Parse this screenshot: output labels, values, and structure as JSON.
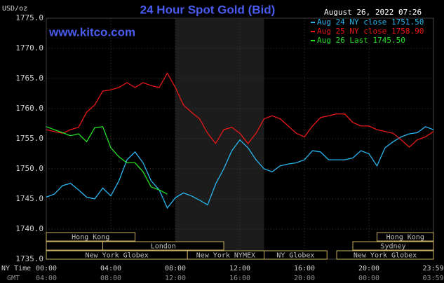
{
  "chart_data": {
    "type": "line",
    "title": "24 Hour Spot Gold (Bid)",
    "y_label": "USD/oz",
    "watermark": "www.kitco.com",
    "timestamp": "August 26, 2022 07:26",
    "x_row_label": "NY Time",
    "x2_row_label": "GMT",
    "x": [
      0,
      0.5,
      1,
      1.5,
      2,
      2.5,
      3,
      3.5,
      4,
      4.5,
      5,
      5.5,
      6,
      6.5,
      7,
      7.5,
      8,
      8.5,
      9,
      9.5,
      10,
      10.5,
      11,
      11.5,
      12,
      12.5,
      13,
      13.5,
      14,
      14.5,
      15,
      15.5,
      16,
      16.5,
      17,
      17.5,
      18,
      18.5,
      19,
      19.5,
      20,
      20.5,
      21,
      21.5,
      22,
      22.5,
      23,
      23.5,
      24
    ],
    "series": [
      {
        "name": "Aug 24 NY close 1751.50",
        "color": "#29b6f0",
        "values": [
          1745.3,
          1745.8,
          1747.2,
          1747.6,
          1746.5,
          1745.3,
          1745.0,
          1746.8,
          1745.5,
          1748.0,
          1751.5,
          1752.8,
          1751.0,
          1748.0,
          1746.5,
          1743.5,
          1745.2,
          1746.0,
          1745.5,
          1744.8,
          1744.0,
          1747.5,
          1750.0,
          1753.0,
          1754.8,
          1753.5,
          1751.5,
          1750.0,
          1749.5,
          1750.5,
          1750.8,
          1751.0,
          1751.5,
          1753.0,
          1752.8,
          1751.5,
          1751.5,
          1751.5,
          1751.8,
          1753.0,
          1752.5,
          1750.5,
          1753.5,
          1754.5,
          1755.3,
          1755.8,
          1756.0,
          1757.0,
          1756.5
        ]
      },
      {
        "name": "Aug 25 NY close 1758.90",
        "color": "#e81818",
        "values": [
          1756.5,
          1756.2,
          1755.9,
          1756.5,
          1756.9,
          1759.4,
          1760.6,
          1762.9,
          1763.1,
          1763.5,
          1764.3,
          1763.5,
          1764.3,
          1763.8,
          1763.5,
          1765.9,
          1763.5,
          1760.6,
          1759.4,
          1758.3,
          1755.9,
          1754.2,
          1756.5,
          1756.9,
          1755.9,
          1754.2,
          1755.9,
          1758.3,
          1758.8,
          1758.3,
          1757.1,
          1755.9,
          1755.3,
          1757.1,
          1758.5,
          1758.8,
          1759.1,
          1759.1,
          1757.7,
          1757.1,
          1757.1,
          1756.5,
          1756.2,
          1755.9,
          1754.8,
          1753.6,
          1754.8,
          1755.3,
          1756.2
        ]
      },
      {
        "name": "Aug 26 Last 1745.50",
        "color": "#22e022",
        "values": [
          1757.0,
          1756.5,
          1756.0,
          1755.5,
          1755.8,
          1754.5,
          1756.8,
          1757.0,
          1753.5,
          1752.0,
          1751.0,
          1751.0,
          1749.5,
          1747.0,
          1746.5,
          1745.8,
          null,
          null,
          null,
          null,
          null,
          null,
          null,
          null,
          null,
          null,
          null,
          null,
          null,
          null,
          null,
          null,
          null,
          null,
          null,
          null,
          null,
          null,
          null,
          null,
          null,
          null,
          null,
          null,
          null,
          null,
          null,
          null,
          null
        ]
      }
    ],
    "xlim": [
      0,
      24
    ],
    "ylim": [
      1735,
      1775
    ],
    "xticks": [
      {
        "value": 0,
        "label": "00:00"
      },
      {
        "value": 4,
        "label": "04:00"
      },
      {
        "value": 8,
        "label": "08:00"
      },
      {
        "value": 12,
        "label": "12:00"
      },
      {
        "value": 16,
        "label": "16:00"
      },
      {
        "value": 20,
        "label": "20:00"
      },
      {
        "value": 23.98,
        "label": "23:59"
      }
    ],
    "x2tick_labels": [
      "04:00",
      "08:00",
      "12:00",
      "16:00",
      "20:00",
      "00:00",
      "03:59"
    ],
    "yticks": [
      {
        "value": 1735,
        "label": "1735.0"
      },
      {
        "value": 1740,
        "label": "1740.0"
      },
      {
        "value": 1745,
        "label": "1745.0"
      },
      {
        "value": 1750,
        "label": "1750.0"
      },
      {
        "value": 1755,
        "label": "1755.0"
      },
      {
        "value": 1760,
        "label": "1760.0"
      },
      {
        "value": 1765,
        "label": "1765.0"
      },
      {
        "value": 1770,
        "label": "1770.0"
      },
      {
        "value": 1775,
        "label": "1775.0"
      }
    ],
    "grid": true,
    "shade": [
      8,
      13.5
    ],
    "sessions": [
      [
        {
          "name": "Hong Kong",
          "start": 0,
          "end": 5.5
        },
        {
          "name": "Hong Kong",
          "start": 20.5,
          "end": 24
        }
      ],
      [
        {
          "name": null,
          "start": 0,
          "end": 3.5
        },
        {
          "name": "London",
          "start": 3.5,
          "end": 11
        },
        {
          "name": "Sydney",
          "start": 19,
          "end": 24
        }
      ],
      [
        {
          "name": "New York Globex",
          "start": 0,
          "end": 8.75
        },
        {
          "name": "New York NYMEX",
          "start": 8.75,
          "end": 13.5
        },
        {
          "name": "NY Globex",
          "start": 13.5,
          "end": 17.4
        },
        {
          "name": "New York Globex",
          "start": 18,
          "end": 24
        }
      ]
    ]
  }
}
